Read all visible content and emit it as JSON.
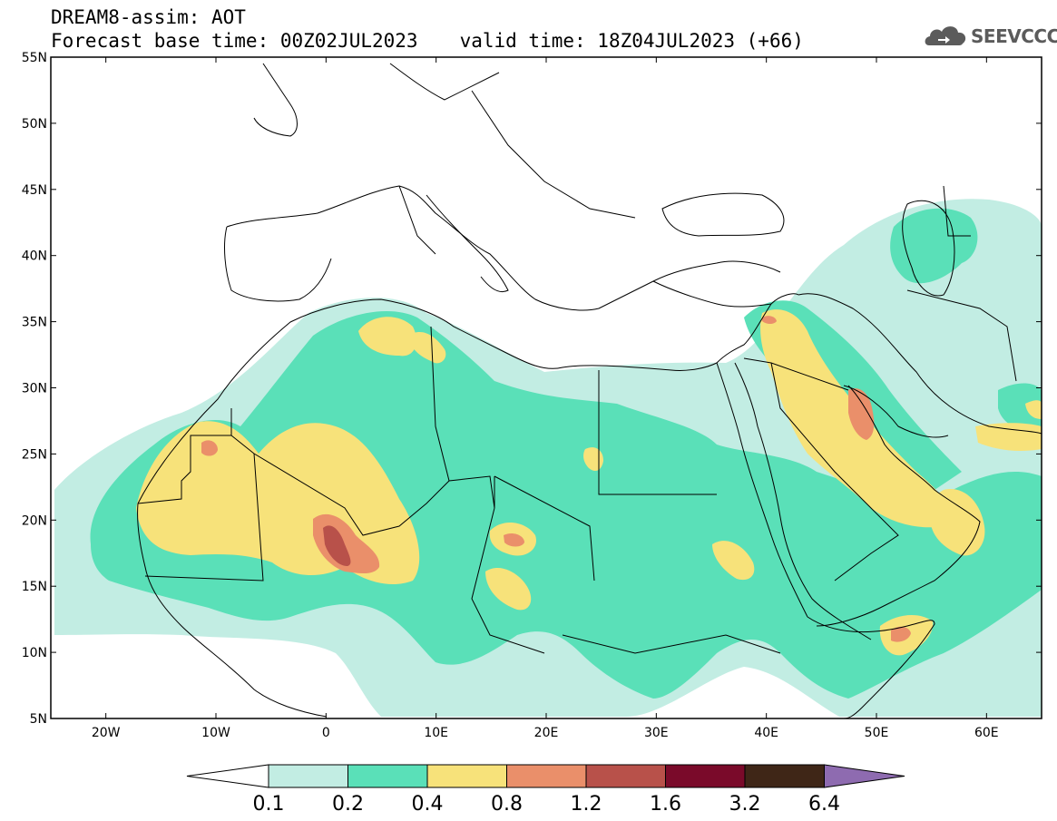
{
  "header": {
    "line1": "DREAM8-assim: AOT",
    "base_time": "Forecast base time: 00Z02JUL2023",
    "valid_time": "valid time: 18Z04JUL2023 (+66)"
  },
  "logo": {
    "text": "SEEVCCC",
    "icon": "cloud-icon"
  },
  "map": {
    "projection": "lat-lon",
    "lon_range": [
      -25,
      65
    ],
    "lat_range": [
      5,
      55
    ],
    "lat_ticks": [
      {
        "value": 55,
        "label": "55N"
      },
      {
        "value": 50,
        "label": "50N"
      },
      {
        "value": 45,
        "label": "45N"
      },
      {
        "value": 40,
        "label": "40N"
      },
      {
        "value": 35,
        "label": "35N"
      },
      {
        "value": 30,
        "label": "30N"
      },
      {
        "value": 25,
        "label": "25N"
      },
      {
        "value": 20,
        "label": "20N"
      },
      {
        "value": 15,
        "label": "15N"
      },
      {
        "value": 10,
        "label": "10N"
      },
      {
        "value": 5,
        "label": "5N"
      }
    ],
    "lon_ticks": [
      {
        "value": -20,
        "label": "20W"
      },
      {
        "value": -10,
        "label": "10W"
      },
      {
        "value": 0,
        "label": "0"
      },
      {
        "value": 10,
        "label": "10E"
      },
      {
        "value": 20,
        "label": "20E"
      },
      {
        "value": 30,
        "label": "30E"
      },
      {
        "value": 40,
        "label": "40E"
      },
      {
        "value": 50,
        "label": "50E"
      },
      {
        "value": 60,
        "label": "60E"
      }
    ],
    "field": "AOT"
  },
  "colorbar": {
    "levels": [
      "0.1",
      "0.2",
      "0.4",
      "0.8",
      "1.2",
      "1.6",
      "3.2",
      "6.4"
    ],
    "colors": [
      "#ffffff",
      "#c2ede3",
      "#5ae0b8",
      "#f7e27a",
      "#ea8f6a",
      "#b8514a",
      "#7a0a2a",
      "#3f2617",
      "#8e6bb0"
    ]
  }
}
